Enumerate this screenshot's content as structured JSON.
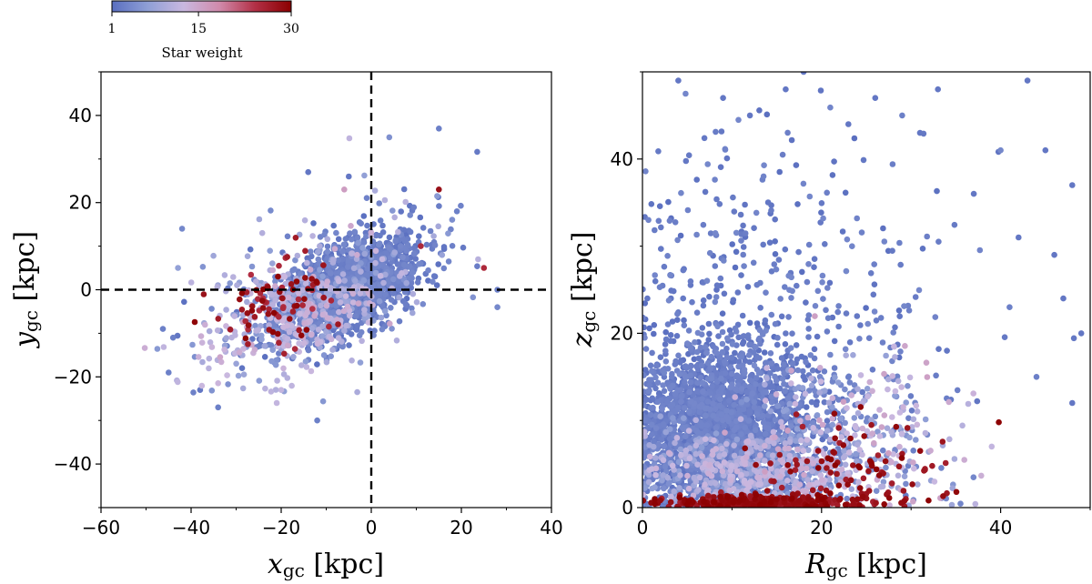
{
  "colorbar": {
    "label": "Star weight",
    "ticks": [
      "1",
      "15",
      "30"
    ],
    "tick_values": [
      1,
      15,
      30
    ],
    "range": [
      1,
      30
    ],
    "colors": [
      "#5a6fc0",
      "#8f9fd6",
      "#c9b8e0",
      "#d08aab",
      "#b22f45",
      "#8b0000"
    ]
  },
  "chart_data": [
    {
      "type": "scatter",
      "xlabel_base": "x",
      "xlabel_sub": "gc",
      "xlabel_unit": " [kpc]",
      "ylabel_base": "y",
      "ylabel_sub": "gc",
      "ylabel_unit": " [kpc]",
      "xlim": [
        -60,
        40
      ],
      "ylim": [
        -50,
        50
      ],
      "xticks": [
        -60,
        -40,
        -20,
        0,
        20,
        40
      ],
      "xtick_labels": [
        "−60",
        "−40",
        "−20",
        "0",
        "20",
        "40"
      ],
      "yticks": [
        -40,
        -20,
        0,
        20,
        40
      ],
      "ytick_labels": [
        "−40",
        "−20",
        "0",
        "20",
        "40"
      ],
      "reference_lines": {
        "x": 0,
        "y": 0,
        "style": "dashed"
      },
      "grid": false,
      "clusters": [
        {
          "n": 1400,
          "cx": -5,
          "cy": 1,
          "sx": 8,
          "sy": 6,
          "corr": 0.55,
          "weight": [
            1,
            4
          ]
        },
        {
          "n": 500,
          "cx": -15,
          "cy": -5,
          "sx": 11,
          "sy": 7,
          "corr": 0.5,
          "weight": [
            3,
            15
          ]
        },
        {
          "n": 80,
          "cx": -22,
          "cy": -4,
          "sx": 7,
          "sy": 5,
          "corr": 0.4,
          "weight": [
            24,
            30
          ]
        },
        {
          "n": 140,
          "cx": -12,
          "cy": 0,
          "sx": 17,
          "sy": 12,
          "corr": 0.45,
          "weight": [
            1,
            12
          ]
        }
      ],
      "points": [
        [
          -34,
          -27,
          3
        ],
        [
          -29,
          -15,
          2
        ],
        [
          -20,
          -23,
          12
        ],
        [
          -12,
          -30,
          3
        ],
        [
          28,
          -4,
          4
        ],
        [
          25,
          5,
          25
        ],
        [
          15,
          23,
          28
        ],
        [
          -6,
          23,
          16
        ],
        [
          -5,
          26,
          2
        ],
        [
          11,
          10,
          25
        ],
        [
          19,
          18,
          3
        ],
        [
          -14,
          27,
          2
        ],
        [
          4,
          35,
          5
        ],
        [
          15,
          37,
          3
        ],
        [
          -44,
          -11,
          3
        ],
        [
          -42,
          14,
          4
        ],
        [
          -45,
          -19,
          3
        ],
        [
          -38,
          -23,
          2
        ],
        [
          -21,
          -26,
          12
        ],
        [
          28,
          0,
          3
        ]
      ]
    },
    {
      "type": "scatter",
      "xlabel_base": "R",
      "xlabel_sub": "gc",
      "xlabel_unit": " [kpc]",
      "ylabel_base": "z",
      "ylabel_sub": "gc",
      "ylabel_unit": " [kpc]",
      "xlim": [
        0,
        50
      ],
      "ylim": [
        0,
        50
      ],
      "xticks": [
        0,
        20,
        40
      ],
      "xtick_labels": [
        "0",
        "20",
        "40"
      ],
      "yticks": [
        0,
        20,
        40
      ],
      "ytick_labels": [
        "0",
        "20",
        "40"
      ],
      "grid": false,
      "clusters": [
        {
          "n": 2200,
          "cx": 9,
          "cy": 9,
          "sx": 5,
          "sy": 5,
          "corr": 0,
          "weight": [
            1,
            4
          ]
        },
        {
          "n": 600,
          "cx": 12,
          "cy": 4,
          "sx": 6,
          "sy": 2.5,
          "corr": 0,
          "weight": [
            4,
            14
          ]
        },
        {
          "n": 300,
          "cx": 13,
          "cy": 0.6,
          "sx": 5,
          "sy": 0.4,
          "corr": 0,
          "weight": [
            26,
            30
          ]
        },
        {
          "n": 350,
          "cx": 23,
          "cy": 8,
          "sx": 6,
          "sy": 5,
          "corr": 0,
          "weight": [
            3,
            16
          ]
        },
        {
          "n": 110,
          "cx": 24,
          "cy": 4,
          "sx": 5,
          "sy": 3,
          "corr": 0,
          "weight": [
            26,
            30
          ]
        },
        {
          "n": 420,
          "cx": 14,
          "cy": 22,
          "sx": 10,
          "sy": 11,
          "corr": 0,
          "weight": [
            1,
            4
          ]
        }
      ],
      "points": [
        [
          4,
          49,
          2
        ],
        [
          18,
          50,
          2
        ],
        [
          16,
          48,
          2
        ],
        [
          26,
          47,
          2
        ],
        [
          33,
          48,
          2
        ],
        [
          43,
          49,
          2
        ],
        [
          49,
          20,
          2
        ],
        [
          48,
          37,
          2
        ],
        [
          47,
          24,
          2
        ],
        [
          45,
          41,
          2
        ],
        [
          40,
          41,
          4
        ],
        [
          41,
          23,
          3
        ],
        [
          44,
          15,
          3
        ],
        [
          48,
          12,
          2
        ],
        [
          39,
          7,
          12
        ],
        [
          34,
          18,
          2
        ],
        [
          29,
          45,
          3
        ],
        [
          23,
          44,
          2
        ],
        [
          12,
          45,
          2
        ],
        [
          31,
          43,
          2
        ],
        [
          9,
          47,
          2
        ],
        [
          46,
          29,
          2
        ],
        [
          37,
          36,
          2
        ],
        [
          42,
          31,
          2
        ]
      ]
    }
  ]
}
